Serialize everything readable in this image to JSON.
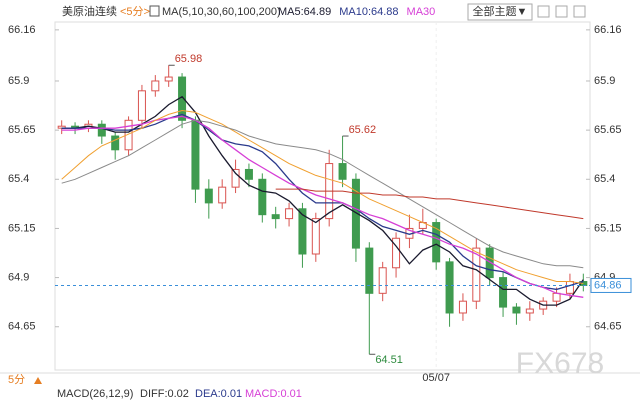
{
  "header": {
    "title": "美原油连续",
    "period": "<5分>",
    "indicator": "MA(5,10,30,60,100,200)",
    "theme_button": "全部主题▼"
  },
  "chart_data": {
    "type": "candlestick",
    "categories": [
      null,
      null,
      null,
      null,
      null,
      null,
      null,
      null,
      null,
      null,
      null,
      null,
      null,
      null,
      null,
      null,
      null,
      null,
      null,
      null,
      null,
      null,
      null,
      null,
      null,
      null,
      null,
      null,
      "05/07",
      null,
      null,
      null,
      null,
      null,
      null,
      null,
      null,
      null,
      null,
      null
    ],
    "candles": {
      "open": [
        65.66,
        65.67,
        65.66,
        65.68,
        65.62,
        65.55,
        65.7,
        65.85,
        65.9,
        65.92,
        65.7,
        65.35,
        65.28,
        65.36,
        65.45,
        65.4,
        65.22,
        65.2,
        65.25,
        65.02,
        65.2,
        65.48,
        65.4,
        65.05,
        64.82,
        64.95,
        65.1,
        65.15,
        65.18,
        64.98,
        64.72,
        64.78,
        65.05,
        64.9,
        64.75,
        64.72,
        64.74,
        64.78,
        64.82,
        64.88
      ],
      "high": [
        65.7,
        65.69,
        65.7,
        65.7,
        65.64,
        65.72,
        65.88,
        65.93,
        65.98,
        65.94,
        65.72,
        65.4,
        65.4,
        65.5,
        65.48,
        65.43,
        65.26,
        65.28,
        65.28,
        65.23,
        65.55,
        65.62,
        65.43,
        65.08,
        64.98,
        65.13,
        65.22,
        65.25,
        65.2,
        65.0,
        64.82,
        65.1,
        65.07,
        64.93,
        64.77,
        64.78,
        64.8,
        64.85,
        64.92,
        64.92
      ],
      "low": [
        65.63,
        65.63,
        65.64,
        65.58,
        65.5,
        65.52,
        65.66,
        65.82,
        65.87,
        65.66,
        65.28,
        65.2,
        65.25,
        65.33,
        65.36,
        65.18,
        65.15,
        65.16,
        64.95,
        64.98,
        65.16,
        65.36,
        64.98,
        64.51,
        64.78,
        64.9,
        65.05,
        65.12,
        64.94,
        64.65,
        64.68,
        64.74,
        64.86,
        64.7,
        64.66,
        64.68,
        64.71,
        64.75,
        64.79,
        64.83
      ],
      "close": [
        65.67,
        65.66,
        65.68,
        65.62,
        65.55,
        65.7,
        65.85,
        65.9,
        65.92,
        65.7,
        65.35,
        65.28,
        65.36,
        65.45,
        65.4,
        65.22,
        65.2,
        65.25,
        65.02,
        65.2,
        65.48,
        65.4,
        65.05,
        64.82,
        64.95,
        65.1,
        65.15,
        65.18,
        64.98,
        64.72,
        64.78,
        65.05,
        64.9,
        64.75,
        64.72,
        64.74,
        64.78,
        64.82,
        64.88,
        64.86
      ],
      "up_color": "#d9534f",
      "down_color": "#3f9b4f"
    },
    "series": [
      {
        "name": "MA5:64.89",
        "color": "#1a1a2e",
        "values": [
          65.66,
          65.66,
          65.67,
          65.66,
          65.64,
          65.64,
          65.68,
          65.72,
          65.78,
          65.82,
          65.74,
          65.62,
          65.52,
          65.43,
          65.37,
          65.34,
          65.33,
          65.29,
          65.22,
          65.18,
          65.23,
          65.27,
          65.23,
          65.19,
          65.14,
          65.06,
          64.97,
          65.04,
          65.07,
          65.03,
          64.96,
          64.94,
          64.89,
          64.84,
          64.84,
          64.79,
          64.76,
          64.76,
          64.79,
          64.89
        ]
      },
      {
        "name": "MA10:64.88",
        "color": "#2b3a8c",
        "values": [
          65.66,
          65.66,
          65.66,
          65.66,
          65.65,
          65.65,
          65.66,
          65.68,
          65.71,
          65.73,
          65.7,
          65.65,
          65.6,
          65.58,
          65.57,
          65.54,
          65.48,
          65.4,
          65.33,
          65.28,
          65.28,
          65.28,
          65.25,
          65.2,
          65.16,
          65.14,
          65.12,
          65.14,
          65.12,
          65.08,
          65.01,
          64.96,
          64.94,
          64.93,
          64.9,
          64.87,
          64.85,
          64.84,
          64.86,
          64.88
        ]
      },
      {
        "name": "MA30",
        "color": "#d63fd6",
        "values": [
          65.65,
          65.65,
          65.66,
          65.66,
          65.66,
          65.67,
          65.68,
          65.7,
          65.71,
          65.72,
          65.7,
          65.66,
          65.6,
          65.55,
          65.5,
          65.46,
          65.42,
          65.38,
          65.35,
          65.32,
          65.3,
          65.28,
          65.25,
          65.22,
          65.2,
          65.17,
          65.14,
          65.12,
          65.1,
          65.07,
          65.05,
          65.02,
          64.98,
          64.94,
          64.9,
          64.87,
          64.85,
          64.82,
          64.81,
          64.8
        ]
      },
      {
        "color": "#f0a030",
        "values": [
          65.4,
          65.46,
          65.52,
          65.57,
          65.6,
          65.63,
          65.66,
          65.7,
          65.73,
          65.75,
          65.74,
          65.71,
          65.68,
          65.64,
          65.6,
          65.56,
          65.52,
          65.48,
          65.45,
          65.42,
          65.4,
          65.38,
          65.34,
          65.3,
          65.27,
          65.24,
          65.21,
          65.18,
          65.15,
          65.11,
          65.07,
          65.03,
          65.0,
          64.97,
          64.94,
          64.92,
          64.9,
          64.88,
          64.88,
          64.87
        ]
      },
      {
        "color": "#8a8a8a",
        "values": [
          65.38,
          65.4,
          65.43,
          65.46,
          65.49,
          65.52,
          65.56,
          65.6,
          65.64,
          65.68,
          65.7,
          65.69,
          65.67,
          65.65,
          65.62,
          65.6,
          65.58,
          65.57,
          65.56,
          65.55,
          65.53,
          65.5,
          65.46,
          65.42,
          65.38,
          65.34,
          65.3,
          65.26,
          65.22,
          65.18,
          65.14,
          65.1,
          65.06,
          65.03,
          65.01,
          64.99,
          64.97,
          64.96,
          64.96,
          64.95
        ]
      },
      {
        "color": "#c0392b",
        "values": [
          null,
          null,
          null,
          null,
          null,
          null,
          null,
          null,
          null,
          null,
          null,
          null,
          null,
          null,
          null,
          null,
          65.35,
          65.35,
          65.35,
          65.34,
          65.34,
          65.34,
          65.33,
          65.33,
          65.32,
          65.32,
          65.31,
          65.31,
          65.3,
          65.3,
          65.29,
          65.28,
          65.27,
          65.26,
          65.25,
          65.24,
          65.23,
          65.22,
          65.21,
          65.2
        ]
      }
    ],
    "ylim": [
      64.43,
      66.2
    ],
    "yticks": [
      66.16,
      65.9,
      65.65,
      65.4,
      65.15,
      64.9,
      64.65
    ],
    "price_line_color": "#3a8fd9",
    "watermark": "FX678"
  },
  "footer": {
    "selector": "5分",
    "indicator": "MACD(26,12,9)",
    "values": [
      "DIFF:0.02",
      "DEA:0.01",
      "MACD:0.01"
    ]
  }
}
